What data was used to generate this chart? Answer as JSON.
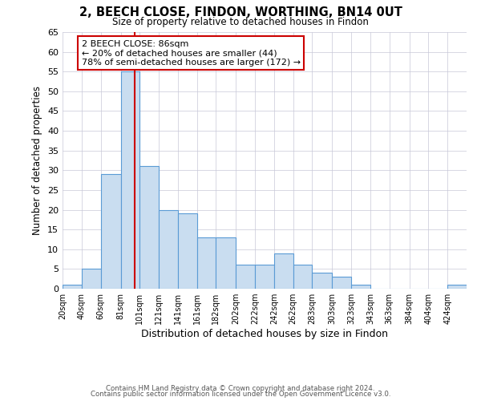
{
  "title": "2, BEECH CLOSE, FINDON, WORTHING, BN14 0UT",
  "subtitle": "Size of property relative to detached houses in Findon",
  "xlabel": "Distribution of detached houses by size in Findon",
  "ylabel": "Number of detached properties",
  "bar_labels": [
    "20sqm",
    "40sqm",
    "60sqm",
    "81sqm",
    "101sqm",
    "121sqm",
    "141sqm",
    "161sqm",
    "182sqm",
    "202sqm",
    "222sqm",
    "242sqm",
    "262sqm",
    "283sqm",
    "303sqm",
    "323sqm",
    "343sqm",
    "363sqm",
    "384sqm",
    "404sqm",
    "424sqm"
  ],
  "bar_values": [
    1,
    5,
    29,
    55,
    31,
    20,
    19,
    13,
    13,
    6,
    6,
    9,
    6,
    4,
    3,
    1,
    0,
    0,
    0,
    0,
    1
  ],
  "bar_edges": [
    10,
    30,
    50,
    71,
    91,
    111,
    131,
    151,
    171,
    192,
    212,
    232,
    252,
    272,
    293,
    313,
    333,
    353,
    374,
    394,
    414,
    434
  ],
  "bar_color": "#c9ddf0",
  "bar_edgecolor": "#5b9bd5",
  "vline_x": 86,
  "vline_color": "#cc0000",
  "annotation_title": "2 BEECH CLOSE: 86sqm",
  "annotation_line1": "← 20% of detached houses are smaller (44)",
  "annotation_line2": "78% of semi-detached houses are larger (172) →",
  "annotation_box_edgecolor": "#cc0000",
  "ylim": [
    0,
    65
  ],
  "yticks": [
    0,
    5,
    10,
    15,
    20,
    25,
    30,
    35,
    40,
    45,
    50,
    55,
    60,
    65
  ],
  "footer1": "Contains HM Land Registry data © Crown copyright and database right 2024.",
  "footer2": "Contains public sector information licensed under the Open Government Licence v3.0.",
  "bg_color": "#ffffff",
  "grid_color": "#c8c8d8"
}
